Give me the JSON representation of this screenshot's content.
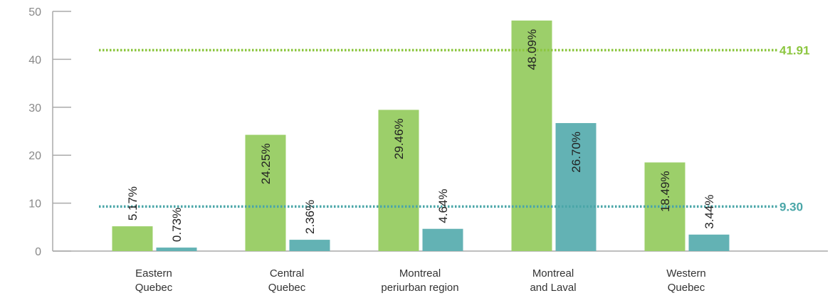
{
  "chart_data": {
    "type": "bar",
    "categories": [
      [
        "Eastern",
        "Quebec"
      ],
      [
        "Central",
        "Quebec"
      ],
      [
        "Montreal",
        "periurban region"
      ],
      [
        "Montreal",
        "and Laval"
      ],
      [
        "Western",
        "Quebec"
      ]
    ],
    "series": [
      {
        "values": [
          5.17,
          24.25,
          29.46,
          48.09,
          18.49
        ],
        "labels": [
          "5.17%",
          "24.25%",
          "29.46%",
          "48.09%",
          "18.49%"
        ],
        "color": "#9ccf6a"
      },
      {
        "values": [
          0.73,
          2.36,
          4.64,
          26.7,
          3.44
        ],
        "labels": [
          "0.73%",
          "2.36%",
          "4.64%",
          "26.70%",
          "3.44%"
        ],
        "color": "#63b2b4"
      }
    ],
    "reference_lines": [
      {
        "value": 41.91,
        "label": "41.91",
        "color": "#8cc63f"
      },
      {
        "value": 9.3,
        "label": "9.30",
        "color": "#4aa6a8"
      }
    ],
    "yticks": [
      0,
      10,
      20,
      30,
      40,
      50
    ],
    "ylim": [
      0,
      50
    ],
    "title": "",
    "xlabel": "",
    "ylabel": "",
    "grid": false,
    "axis_color": "#aaaaaa"
  }
}
